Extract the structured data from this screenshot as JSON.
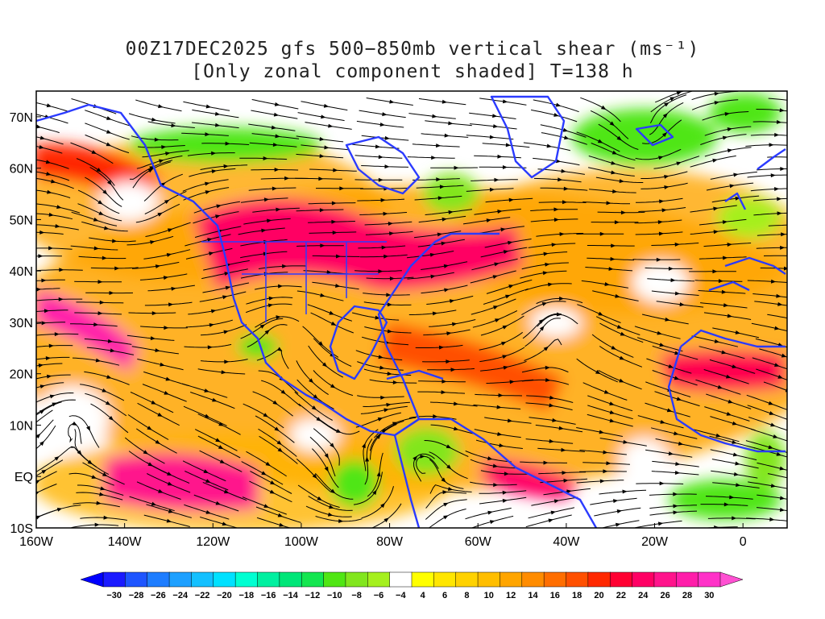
{
  "title": {
    "line1": "00Z17DEC2025 gfs 500−850mb vertical shear (ms⁻¹)",
    "line2": "[Only zonal component shaded] T=138 h"
  },
  "map": {
    "lon_range": [
      -160,
      10
    ],
    "lat_range": [
      -10,
      75
    ],
    "lat_ticks": [
      {
        "value": 70,
        "label": "70N"
      },
      {
        "value": 60,
        "label": "60N"
      },
      {
        "value": 50,
        "label": "50N"
      },
      {
        "value": 40,
        "label": "40N"
      },
      {
        "value": 30,
        "label": "30N"
      },
      {
        "value": 20,
        "label": "20N"
      },
      {
        "value": 10,
        "label": "10N"
      },
      {
        "value": 0,
        "label": "EQ"
      },
      {
        "value": -10,
        "label": "10S"
      }
    ],
    "lon_ticks": [
      {
        "value": -160,
        "label": "160W"
      },
      {
        "value": -140,
        "label": "140W"
      },
      {
        "value": -120,
        "label": "120W"
      },
      {
        "value": -100,
        "label": "100W"
      },
      {
        "value": -80,
        "label": "80W"
      },
      {
        "value": -60,
        "label": "60W"
      },
      {
        "value": -40,
        "label": "40W"
      },
      {
        "value": -20,
        "label": "20W"
      },
      {
        "value": 0,
        "label": "0"
      }
    ],
    "coastline_color": "#2b3bff",
    "streamline_color": "#000000"
  },
  "colorbar": {
    "labels": [
      "-30",
      "-28",
      "-26",
      "-24",
      "-22",
      "-20",
      "-18",
      "-16",
      "-14",
      "-12",
      "-10",
      "-8",
      "-6",
      "-4",
      "4",
      "6",
      "8",
      "10",
      "12",
      "14",
      "16",
      "18",
      "20",
      "22",
      "24",
      "26",
      "28",
      "30"
    ],
    "colors": [
      "#1a1aff",
      "#1e55ff",
      "#1e7dff",
      "#1ea0ff",
      "#14c0ff",
      "#00e1ff",
      "#00ffd2",
      "#00f0a0",
      "#00e678",
      "#14e650",
      "#50e614",
      "#82e61e",
      "#a5f01e",
      "#ffffff",
      "#ffff00",
      "#ffe600",
      "#ffd200",
      "#ffbe00",
      "#ffa500",
      "#ff8c00",
      "#ff6e00",
      "#ff5000",
      "#ff2800",
      "#ff0032",
      "#ff0064",
      "#ff148c",
      "#ff1eaa",
      "#ff32c8"
    ]
  },
  "legend_colors": {
    "neg_end": "#0000ff",
    "pos_end": "#ff50d2"
  }
}
